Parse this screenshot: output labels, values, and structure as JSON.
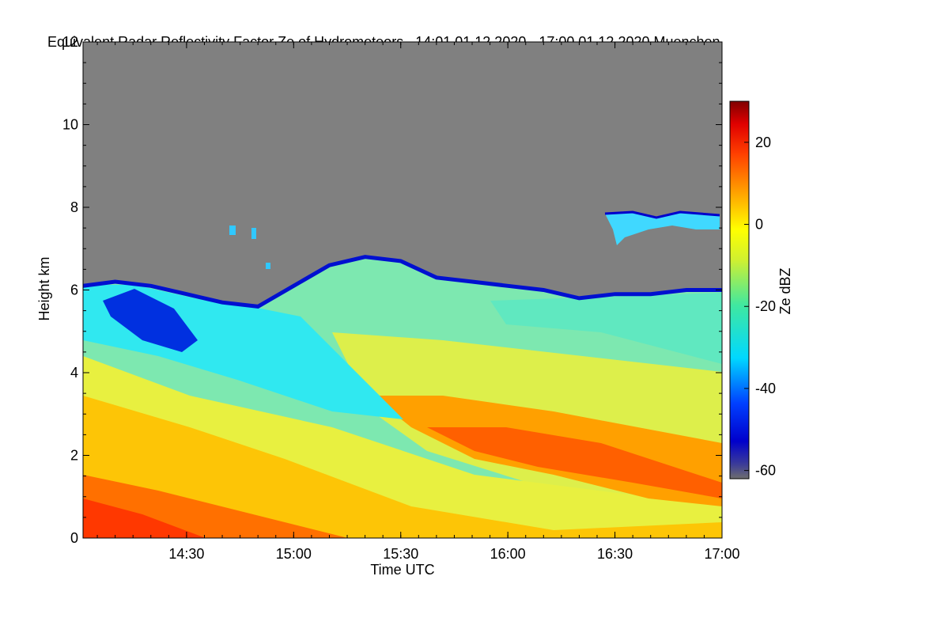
{
  "chart_data": {
    "type": "heatmap",
    "title": "Equivalent Radar Reflectivity Factor Ze of Hydrometeors",
    "time_range": "14:01 01.12.2020 - 17:00 01.12.2020",
    "location": "Muenchen",
    "xlabel": "Time UTC",
    "ylabel": "Height km",
    "x_ticks": [
      "14:30",
      "15:00",
      "15:30",
      "16:00",
      "16:30",
      "17:00"
    ],
    "x_tick_minutes": [
      870,
      900,
      930,
      960,
      990,
      1020
    ],
    "x_range_minutes": [
      841,
      1020
    ],
    "y_ticks": [
      "0",
      "2",
      "4",
      "6",
      "8",
      "10",
      "12"
    ],
    "ylim": [
      0,
      12
    ],
    "colorbar": {
      "label": "Ze dBZ",
      "ticks": [
        "20",
        "0",
        "-20",
        "-40",
        "-60"
      ],
      "range": [
        -62,
        30
      ]
    },
    "cloud_top_km": [
      {
        "t": 841,
        "top": 6.1
      },
      {
        "t": 850,
        "top": 6.2
      },
      {
        "t": 860,
        "top": 6.1
      },
      {
        "t": 870,
        "top": 5.9
      },
      {
        "t": 880,
        "top": 5.7
      },
      {
        "t": 890,
        "top": 5.6
      },
      {
        "t": 900,
        "top": 6.1
      },
      {
        "t": 910,
        "top": 6.6
      },
      {
        "t": 920,
        "top": 6.8
      },
      {
        "t": 930,
        "top": 6.7
      },
      {
        "t": 940,
        "top": 6.3
      },
      {
        "t": 950,
        "top": 6.2
      },
      {
        "t": 960,
        "top": 6.1
      },
      {
        "t": 970,
        "top": 6.0
      },
      {
        "t": 980,
        "top": 5.8
      },
      {
        "t": 990,
        "top": 5.9
      },
      {
        "t": 1000,
        "top": 5.9
      },
      {
        "t": 1010,
        "top": 6.0
      },
      {
        "t": 1020,
        "top": 6.0
      }
    ],
    "features": [
      {
        "name": "upper-cloud-patch",
        "t_start": 990,
        "t_end": 1020,
        "height_min_km": 7.0,
        "height_max_km": 7.9
      },
      {
        "name": "high-reflectivity-band",
        "t_start": 930,
        "t_end": 1020,
        "height_min_km": 1.0,
        "height_max_km": 3.5,
        "ze_max_dbz": 10
      }
    ]
  }
}
